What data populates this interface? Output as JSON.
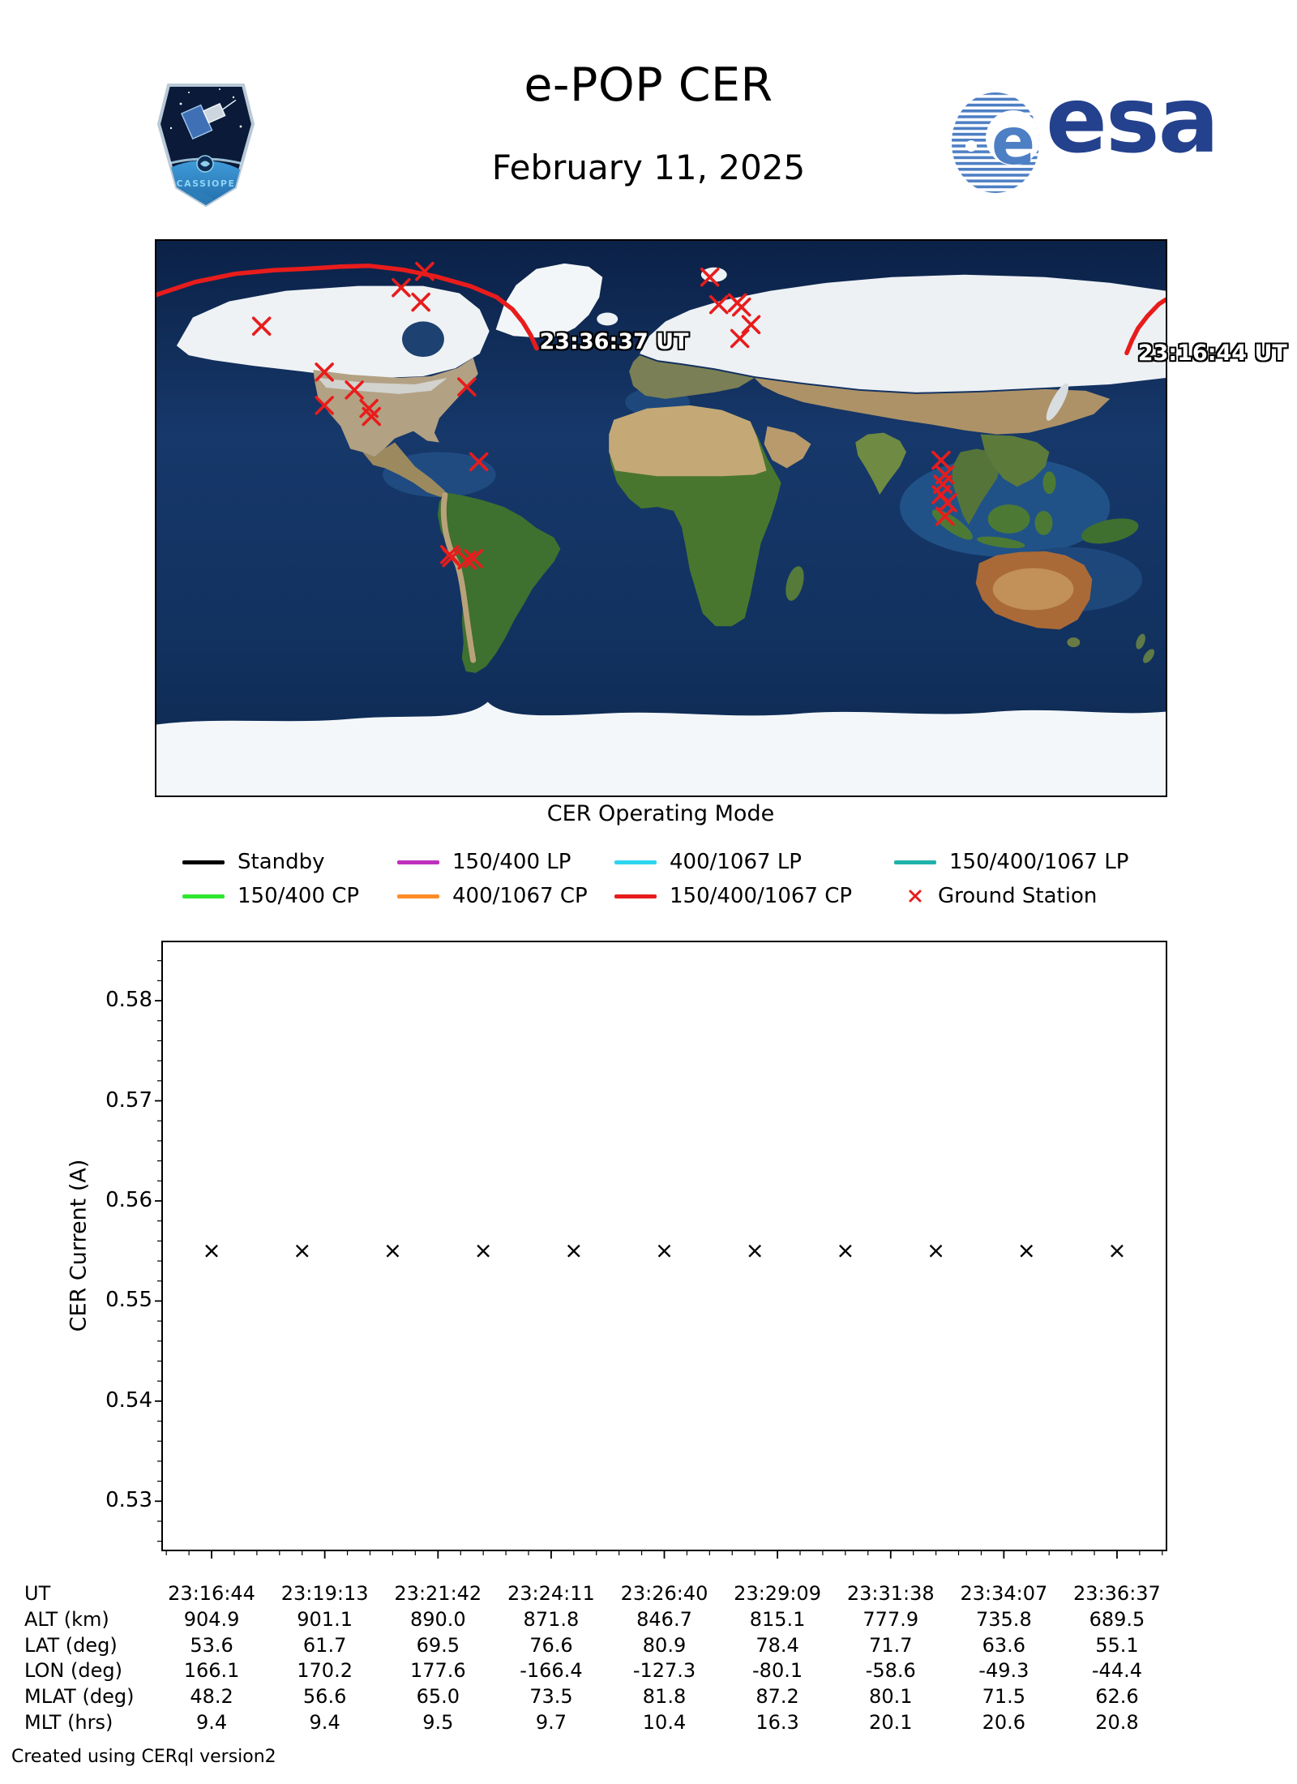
{
  "header": {
    "title": "e-POP CER",
    "date": "February 11, 2025",
    "cassiope_label": "CASSIOPE",
    "esa_label": "esa"
  },
  "map": {
    "caption": "CER Operating Mode",
    "start_label": "23:16:44 UT",
    "end_label": "23:36:37 UT"
  },
  "legend": {
    "items": [
      {
        "label": "Standby",
        "color": "#000000",
        "kind": "line",
        "row": 0,
        "col": 0
      },
      {
        "label": "150/400 LP",
        "color": "#bf30bf",
        "kind": "line",
        "row": 0,
        "col": 1
      },
      {
        "label": "400/1067 LP",
        "color": "#2ed5ef",
        "kind": "line",
        "row": 0,
        "col": 2
      },
      {
        "label": "150/400/1067 LP",
        "color": "#20b2aa",
        "kind": "line",
        "row": 0,
        "col": 3
      },
      {
        "label": "150/400 CP",
        "color": "#2ee62e",
        "kind": "line",
        "row": 1,
        "col": 0
      },
      {
        "label": "400/1067 CP",
        "color": "#ff8c26",
        "kind": "line",
        "row": 1,
        "col": 1
      },
      {
        "label": "150/400/1067 CP",
        "color": "#e81c1c",
        "kind": "line",
        "row": 1,
        "col": 2
      },
      {
        "label": "Ground Station",
        "color": "#e81c1c",
        "kind": "x",
        "row": 1,
        "col": 3
      }
    ]
  },
  "chart_data": [
    {
      "type": "line",
      "title": "ground track map",
      "track_color": "#e81c1c",
      "station_color": "#e81c1c",
      "track_segments_lonlat": [
        [
          [
            166.1,
            53.6
          ],
          [
            168.0,
            57.8
          ],
          [
            170.2,
            61.7
          ],
          [
            173.6,
            65.7
          ],
          [
            177.6,
            69.5
          ],
          [
            180.0,
            70.9
          ]
        ],
        [
          [
            -180.0,
            72.5
          ],
          [
            -166.4,
            76.6
          ],
          [
            -152.0,
            79.3
          ],
          [
            -138.0,
            80.5
          ],
          [
            -127.3,
            80.9
          ],
          [
            -115.0,
            81.6
          ],
          [
            -104.0,
            81.9
          ],
          [
            -92.0,
            80.6
          ],
          [
            -80.1,
            78.4
          ],
          [
            -68.0,
            75.3
          ],
          [
            -58.6,
            71.7
          ],
          [
            -53.0,
            67.8
          ],
          [
            -49.3,
            63.6
          ],
          [
            -46.5,
            59.4
          ],
          [
            -44.4,
            55.1
          ]
        ]
      ],
      "ground_stations_lonlat": [
        [
          -142.5,
          62.3
        ],
        [
          -84.3,
          80.1
        ],
        [
          -92.7,
          74.8
        ],
        [
          -85.7,
          70.1
        ],
        [
          -120.1,
          47.4
        ],
        [
          -109.4,
          41.6
        ],
        [
          -120.1,
          36.6
        ],
        [
          -104.2,
          35.6
        ],
        [
          -103.3,
          33.0
        ],
        [
          -69.3,
          42.6
        ],
        [
          -65.0,
          18.3
        ],
        [
          -75.4,
          -11.8
        ],
        [
          -74.7,
          -12.8
        ],
        [
          -69.2,
          -13.6
        ],
        [
          -66.9,
          -13.1
        ],
        [
          17.4,
          78.2
        ],
        [
          20.6,
          69.3
        ],
        [
          27.2,
          69.9
        ],
        [
          28.7,
          68.5
        ],
        [
          32.1,
          62.8
        ],
        [
          28.1,
          58.3
        ],
        [
          99.9,
          18.8
        ],
        [
          101.3,
          14.1
        ],
        [
          100.5,
          11.0
        ],
        [
          99.9,
          7.6
        ],
        [
          102.2,
          5.0
        ],
        [
          101.3,
          0.6
        ]
      ]
    },
    {
      "type": "scatter",
      "ylabel": "CER Current (A)",
      "ylim": [
        0.525,
        0.586
      ],
      "y_ticks": [
        0.53,
        0.54,
        0.55,
        0.56,
        0.57,
        0.58
      ],
      "y_minor_step": 0.002,
      "x_range_seconds": [
        0,
        1193
      ],
      "x_tick_seconds": [
        0,
        149.1,
        298.3,
        447.4,
        596.5,
        745.6,
        894.8,
        1043.9,
        1193
      ],
      "x_tick_labels": [
        "23:16:44",
        "23:19:13",
        "23:21:42",
        "23:24:11",
        "23:26:40",
        "23:29:09",
        "23:31:38",
        "23:34:07",
        "23:36:37"
      ],
      "points": {
        "x_seconds": [
          0,
          119.3,
          238.6,
          357.9,
          477.2,
          596.5,
          715.8,
          835.1,
          954.4,
          1073.7,
          1193
        ],
        "y": [
          0.555,
          0.555,
          0.555,
          0.555,
          0.555,
          0.555,
          0.555,
          0.555,
          0.555,
          0.555,
          0.555
        ]
      },
      "marker": "x",
      "marker_color": "#000000"
    }
  ],
  "table": {
    "rows": [
      {
        "label": "UT",
        "values": [
          "23:16:44",
          "23:19:13",
          "23:21:42",
          "23:24:11",
          "23:26:40",
          "23:29:09",
          "23:31:38",
          "23:34:07",
          "23:36:37"
        ]
      },
      {
        "label": "ALT (km)",
        "values": [
          "904.9",
          "901.1",
          "890.0",
          "871.8",
          "846.7",
          "815.1",
          "777.9",
          "735.8",
          "689.5"
        ]
      },
      {
        "label": "LAT (deg)",
        "values": [
          "53.6",
          "61.7",
          "69.5",
          "76.6",
          "80.9",
          "78.4",
          "71.7",
          "63.6",
          "55.1"
        ]
      },
      {
        "label": "LON (deg)",
        "values": [
          "166.1",
          "170.2",
          "177.6",
          "-166.4",
          "-127.3",
          "-80.1",
          "-58.6",
          "-49.3",
          "-44.4"
        ]
      },
      {
        "label": "MLAT (deg)",
        "values": [
          "48.2",
          "56.6",
          "65.0",
          "73.5",
          "81.8",
          "87.2",
          "80.1",
          "71.5",
          "62.6"
        ]
      },
      {
        "label": "MLT (hrs)",
        "values": [
          "9.4",
          "9.4",
          "9.5",
          "9.7",
          "10.4",
          "16.3",
          "20.1",
          "20.6",
          "20.8"
        ]
      }
    ]
  },
  "footer": "Created using CERql version2"
}
